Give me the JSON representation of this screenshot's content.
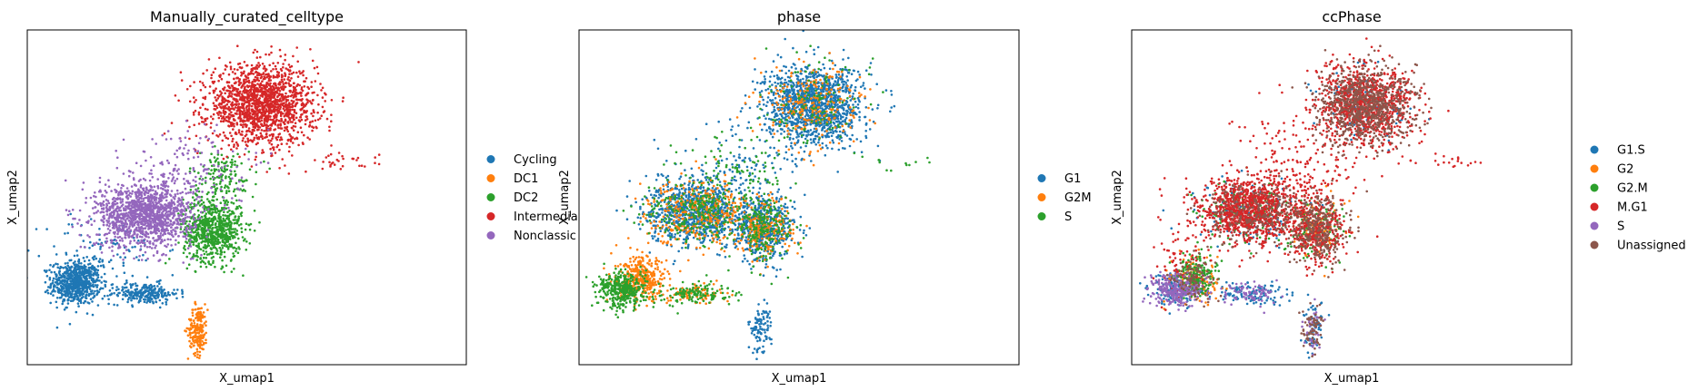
{
  "chart_data": [
    {
      "type": "scatter",
      "title": "Manually_curated_celltype",
      "xlabel": "X_umap1",
      "ylabel": "X_umap2",
      "grid": false,
      "legend": {
        "placement": "right",
        "entries": [
          {
            "name": "Cycling",
            "color": "#1f77b4"
          },
          {
            "name": "DC1",
            "color": "#ff7f0e"
          },
          {
            "name": "DC2",
            "color": "#2ca02c"
          },
          {
            "name": "Intermedia",
            "color": "#d62728"
          },
          {
            "name": "Nonclassic",
            "color": "#9467bd"
          }
        ]
      },
      "series": [
        {
          "name": "Cycling",
          "color": "#1f77b4",
          "clusters": [
            {
              "x": 1.5,
              "y": 2.8,
              "sx": 0.25,
              "sy": 0.3,
              "n": 700
            },
            {
              "x": 2.9,
              "y": 2.5,
              "sx": 0.35,
              "sy": 0.15,
              "n": 240
            },
            {
              "x": 2.1,
              "y": 3.8,
              "sx": 0.6,
              "sy": 0.45,
              "n": 90
            }
          ]
        },
        {
          "name": "DC1",
          "color": "#ff7f0e",
          "clusters": [
            {
              "x": 4.0,
              "y": 1.5,
              "sx": 0.1,
              "sy": 0.35,
              "n": 200
            }
          ]
        },
        {
          "name": "DC2",
          "color": "#2ca02c",
          "clusters": [
            {
              "x": 4.3,
              "y": 4.3,
              "sx": 0.3,
              "sy": 0.45,
              "n": 750
            },
            {
              "x": 4.5,
              "y": 5.8,
              "sx": 0.35,
              "sy": 0.35,
              "n": 140
            }
          ]
        },
        {
          "name": "Intermediate",
          "color": "#d62728",
          "clusters": [
            {
              "x": 5.3,
              "y": 7.8,
              "sx": 0.55,
              "sy": 0.55,
              "n": 1600
            },
            {
              "x": 7.0,
              "y": 6.2,
              "sx": 0.35,
              "sy": 0.12,
              "n": 30
            }
          ]
        },
        {
          "name": "Nonclassical",
          "color": "#9467bd",
          "clusters": [
            {
              "x": 2.9,
              "y": 4.7,
              "sx": 0.5,
              "sy": 0.45,
              "n": 1300
            },
            {
              "x": 3.8,
              "y": 6.0,
              "sx": 0.6,
              "sy": 0.6,
              "n": 170
            }
          ]
        }
      ]
    },
    {
      "type": "scatter",
      "title": "phase",
      "xlabel": "X_umap1",
      "ylabel": "X_umap2",
      "grid": false,
      "legend": {
        "placement": "right",
        "entries": [
          {
            "name": "G1",
            "color": "#1f77b4"
          },
          {
            "name": "G2M",
            "color": "#ff7f0e"
          },
          {
            "name": "S",
            "color": "#2ca02c"
          }
        ]
      },
      "series": [
        {
          "name": "G1",
          "color": "#1f77b4",
          "clusters": [
            {
              "x": 5.3,
              "y": 7.8,
              "sx": 0.5,
              "sy": 0.55,
              "n": 1300
            },
            {
              "x": 2.9,
              "y": 4.8,
              "sx": 0.5,
              "sy": 0.45,
              "n": 900
            },
            {
              "x": 4.3,
              "y": 4.3,
              "sx": 0.3,
              "sy": 0.45,
              "n": 500
            },
            {
              "x": 4.2,
              "y": 1.5,
              "sx": 0.12,
              "sy": 0.35,
              "n": 100
            },
            {
              "x": 3.8,
              "y": 6.0,
              "sx": 0.65,
              "sy": 0.6,
              "n": 120
            }
          ]
        },
        {
          "name": "G2M",
          "color": "#ff7f0e",
          "clusters": [
            {
              "x": 1.8,
              "y": 2.9,
              "sx": 0.25,
              "sy": 0.3,
              "n": 350
            },
            {
              "x": 2.9,
              "y": 4.8,
              "sx": 0.5,
              "sy": 0.45,
              "n": 350
            },
            {
              "x": 4.3,
              "y": 4.3,
              "sx": 0.3,
              "sy": 0.45,
              "n": 220
            },
            {
              "x": 5.3,
              "y": 7.8,
              "sx": 0.5,
              "sy": 0.55,
              "n": 250
            },
            {
              "x": 2.9,
              "y": 2.5,
              "sx": 0.3,
              "sy": 0.15,
              "n": 80
            }
          ]
        },
        {
          "name": "S",
          "color": "#2ca02c",
          "clusters": [
            {
              "x": 1.4,
              "y": 2.6,
              "sx": 0.25,
              "sy": 0.25,
              "n": 380
            },
            {
              "x": 2.9,
              "y": 2.5,
              "sx": 0.35,
              "sy": 0.15,
              "n": 130
            },
            {
              "x": 2.9,
              "y": 4.8,
              "sx": 0.5,
              "sy": 0.45,
              "n": 250
            },
            {
              "x": 4.3,
              "y": 4.3,
              "sx": 0.3,
              "sy": 0.45,
              "n": 200
            },
            {
              "x": 5.3,
              "y": 7.8,
              "sx": 0.5,
              "sy": 0.55,
              "n": 120
            },
            {
              "x": 7.0,
              "y": 6.2,
              "sx": 0.35,
              "sy": 0.12,
              "n": 12
            },
            {
              "x": 3.8,
              "y": 6.0,
              "sx": 0.65,
              "sy": 0.6,
              "n": 90
            }
          ]
        }
      ]
    },
    {
      "type": "scatter",
      "title": "ccPhase",
      "xlabel": "X_umap1",
      "ylabel": "X_umap2",
      "grid": false,
      "legend": {
        "placement": "right",
        "entries": [
          {
            "name": "G1.S",
            "color": "#1f77b4"
          },
          {
            "name": "G2",
            "color": "#ff7f0e"
          },
          {
            "name": "G2.M",
            "color": "#2ca02c"
          },
          {
            "name": "M.G1",
            "color": "#d62728"
          },
          {
            "name": "S",
            "color": "#9467bd"
          },
          {
            "name": "Unassigned",
            "color": "#8c564b"
          }
        ]
      },
      "series": [
        {
          "name": "G1.S",
          "color": "#1f77b4",
          "clusters": [
            {
              "x": 2.9,
              "y": 2.5,
              "sx": 0.35,
              "sy": 0.15,
              "n": 120
            },
            {
              "x": 1.4,
              "y": 2.6,
              "sx": 0.25,
              "sy": 0.25,
              "n": 120
            },
            {
              "x": 4.2,
              "y": 1.5,
              "sx": 0.12,
              "sy": 0.35,
              "n": 60
            },
            {
              "x": 2.9,
              "y": 4.8,
              "sx": 0.5,
              "sy": 0.45,
              "n": 120
            },
            {
              "x": 5.3,
              "y": 7.8,
              "sx": 0.5,
              "sy": 0.55,
              "n": 80
            }
          ]
        },
        {
          "name": "G2",
          "color": "#ff7f0e",
          "clusters": [
            {
              "x": 1.8,
              "y": 2.9,
              "sx": 0.25,
              "sy": 0.3,
              "n": 120
            },
            {
              "x": 4.3,
              "y": 4.3,
              "sx": 0.3,
              "sy": 0.45,
              "n": 80
            }
          ]
        },
        {
          "name": "G2.M",
          "color": "#2ca02c",
          "clusters": [
            {
              "x": 1.8,
              "y": 3.0,
              "sx": 0.2,
              "sy": 0.3,
              "n": 200
            },
            {
              "x": 2.9,
              "y": 4.8,
              "sx": 0.5,
              "sy": 0.45,
              "n": 120
            },
            {
              "x": 4.3,
              "y": 4.3,
              "sx": 0.3,
              "sy": 0.45,
              "n": 90
            }
          ]
        },
        {
          "name": "M.G1",
          "color": "#d62728",
          "clusters": [
            {
              "x": 2.9,
              "y": 4.8,
              "sx": 0.5,
              "sy": 0.45,
              "n": 1000
            },
            {
              "x": 5.3,
              "y": 7.8,
              "sx": 0.5,
              "sy": 0.55,
              "n": 900
            },
            {
              "x": 4.3,
              "y": 4.3,
              "sx": 0.3,
              "sy": 0.45,
              "n": 350
            },
            {
              "x": 3.8,
              "y": 6.0,
              "sx": 0.7,
              "sy": 0.7,
              "n": 220
            },
            {
              "x": 1.5,
              "y": 3.3,
              "sx": 0.3,
              "sy": 0.6,
              "n": 80
            },
            {
              "x": 7.0,
              "y": 6.2,
              "sx": 0.35,
              "sy": 0.12,
              "n": 20
            }
          ]
        },
        {
          "name": "S",
          "color": "#9467bd",
          "clusters": [
            {
              "x": 1.4,
              "y": 2.6,
              "sx": 0.25,
              "sy": 0.22,
              "n": 280
            },
            {
              "x": 2.9,
              "y": 2.5,
              "sx": 0.3,
              "sy": 0.15,
              "n": 80
            },
            {
              "x": 4.2,
              "y": 1.5,
              "sx": 0.1,
              "sy": 0.3,
              "n": 40
            }
          ]
        },
        {
          "name": "Unassigned",
          "color": "#8c564b",
          "clusters": [
            {
              "x": 5.3,
              "y": 7.8,
              "sx": 0.5,
              "sy": 0.55,
              "n": 800
            },
            {
              "x": 4.3,
              "y": 4.3,
              "sx": 0.3,
              "sy": 0.45,
              "n": 320
            },
            {
              "x": 2.9,
              "y": 4.8,
              "sx": 0.5,
              "sy": 0.45,
              "n": 250
            },
            {
              "x": 4.2,
              "y": 1.5,
              "sx": 0.12,
              "sy": 0.35,
              "n": 70
            },
            {
              "x": 1.8,
              "y": 2.9,
              "sx": 0.25,
              "sy": 0.3,
              "n": 90
            }
          ]
        }
      ]
    }
  ]
}
